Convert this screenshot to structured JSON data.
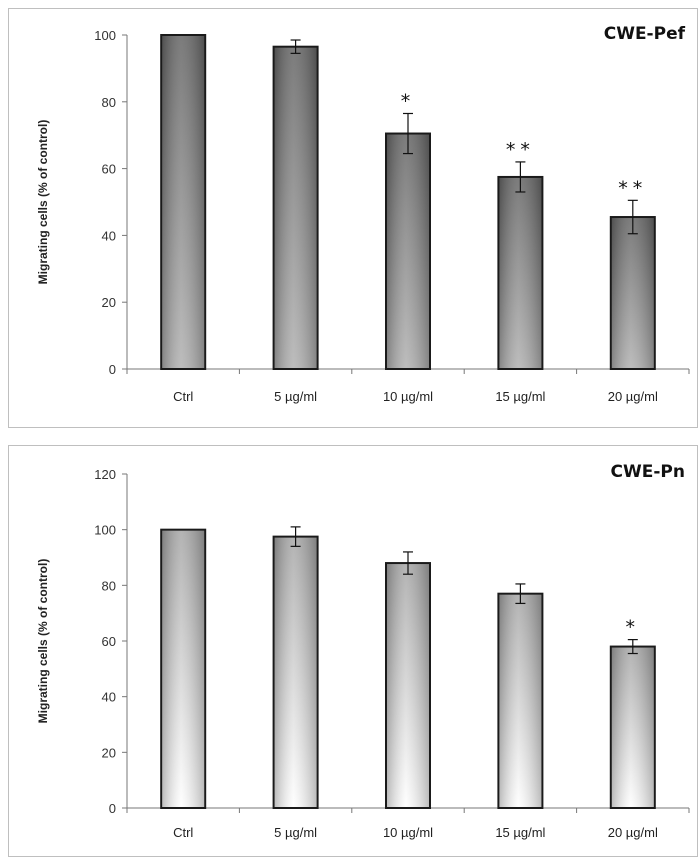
{
  "chart_data": [
    {
      "type": "bar",
      "title": "CWE-Pef",
      "xlabel": "",
      "ylabel": "Migrating cells (% of control)",
      "categories": [
        "Ctrl",
        "5 µg/ml",
        "10 µg/ml",
        "15 µg/ml",
        "20 µg/ml"
      ],
      "values": [
        100,
        96.5,
        70.5,
        57.5,
        45.5
      ],
      "error": [
        0,
        2,
        6,
        4.5,
        5
      ],
      "significance": [
        "",
        "",
        "*",
        "**",
        "**"
      ],
      "ylim": [
        0,
        100
      ],
      "yticks": [
        0,
        20,
        40,
        60,
        80,
        100
      ],
      "grid": false,
      "bar_gradient": [
        "#6a6a6a",
        "#b4b4b4"
      ]
    },
    {
      "type": "bar",
      "title": "CWE-Pn",
      "xlabel": "",
      "ylabel": "Migrating cells (% of control)",
      "categories": [
        "Ctrl",
        "5 µg/ml",
        "10 µg/ml",
        "15 µg/ml",
        "20 µg/ml"
      ],
      "values": [
        100,
        97.5,
        88,
        77,
        58
      ],
      "error": [
        0,
        3.5,
        4,
        3.5,
        2.5
      ],
      "significance": [
        "",
        "",
        "",
        "",
        "*"
      ],
      "ylim": [
        0,
        120
      ],
      "yticks": [
        0,
        20,
        40,
        60,
        80,
        100,
        120
      ],
      "grid": false,
      "bar_gradient": [
        "#a9a9a9",
        "#ffffff"
      ]
    }
  ]
}
